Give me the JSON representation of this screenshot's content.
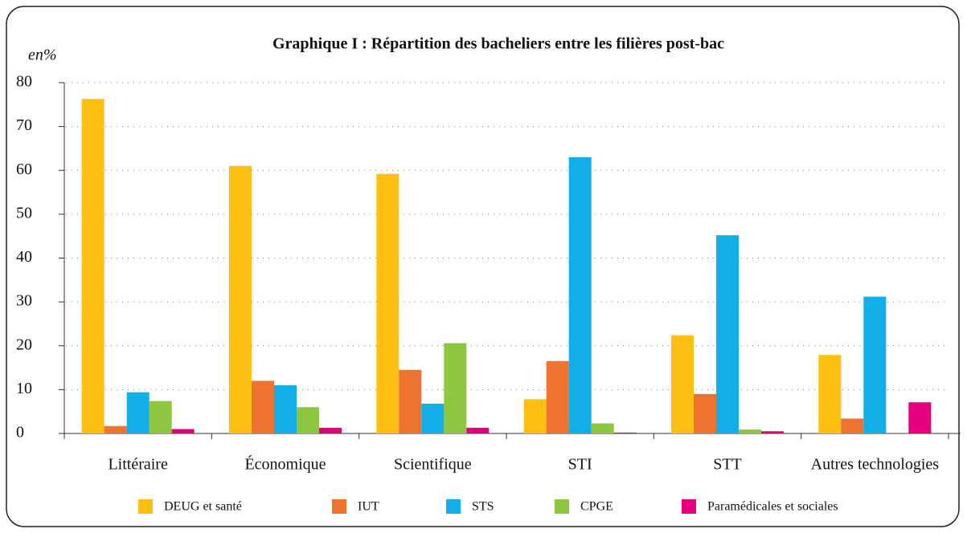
{
  "chart_data": {
    "type": "bar",
    "title": "Graphique I : Répartition des bacheliers entre les filières post-bac",
    "y_label": "en%",
    "categories": [
      "Littéraire",
      "Économique",
      "Scientifique",
      "STI",
      "STT",
      "Autres technologies"
    ],
    "series": [
      {
        "name": "DEUG et santé",
        "color": "#fdbf12",
        "values": [
          76.3,
          61,
          59.2,
          7.8,
          22.4,
          17.9
        ]
      },
      {
        "name": "IUT",
        "color": "#ee7230",
        "values": [
          1.7,
          12,
          14.5,
          16.5,
          9,
          3.4
        ]
      },
      {
        "name": "STS",
        "color": "#11aee8",
        "values": [
          9.4,
          11,
          6.8,
          63,
          45.2,
          31.2
        ]
      },
      {
        "name": "CPGE",
        "color": "#8dc63f",
        "values": [
          7.4,
          6,
          20.6,
          2.3,
          0.9,
          0.2
        ]
      },
      {
        "name": "Paramédicales et sociales",
        "color": "#e6007e",
        "values": [
          1.0,
          1.3,
          1.3,
          0.2,
          0.5,
          7.1
        ]
      }
    ],
    "ylim": [
      0,
      80
    ],
    "yticks": [
      0,
      10,
      20,
      30,
      40,
      50,
      60,
      70,
      80
    ],
    "grid": true,
    "legend": "bottom"
  }
}
